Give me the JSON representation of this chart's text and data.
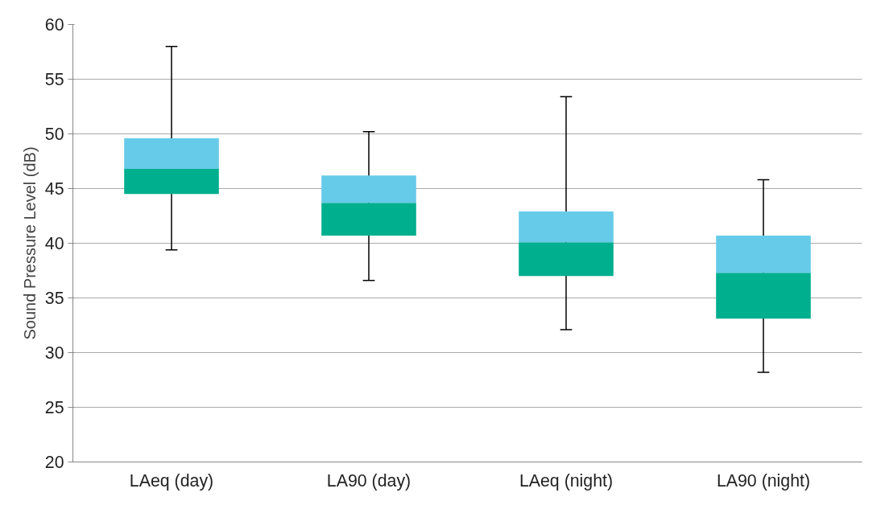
{
  "chart_data": {
    "type": "box",
    "ylabel": "Sound Pressure Level (dB)",
    "categories": [
      "LAeq (day)",
      "LA90 (day)",
      "LAeq (night)",
      "LA90 (night)"
    ],
    "boxes": [
      {
        "low": 39.4,
        "q1": 44.5,
        "median": 46.8,
        "q3": 49.6,
        "high": 58.0
      },
      {
        "low": 36.6,
        "q1": 40.7,
        "median": 43.7,
        "q3": 46.2,
        "high": 50.2
      },
      {
        "low": 32.1,
        "q1": 37.0,
        "median": 40.1,
        "q3": 42.9,
        "high": 53.4
      },
      {
        "low": 28.2,
        "q1": 33.1,
        "median": 37.3,
        "q3": 40.7,
        "high": 45.8
      }
    ],
    "colors": [
      [
        "#00af8e",
        "#66cbe8"
      ],
      [
        "#00af8e",
        "#66cbe8"
      ],
      [
        "#00af8e",
        "#66cbe8"
      ],
      [
        "#00af8e",
        "#66cbe8"
      ]
    ],
    "ylim": [
      20,
      60
    ],
    "yticks": [
      20,
      25,
      30,
      35,
      40,
      45,
      50,
      55,
      60
    ],
    "grid": "y"
  }
}
